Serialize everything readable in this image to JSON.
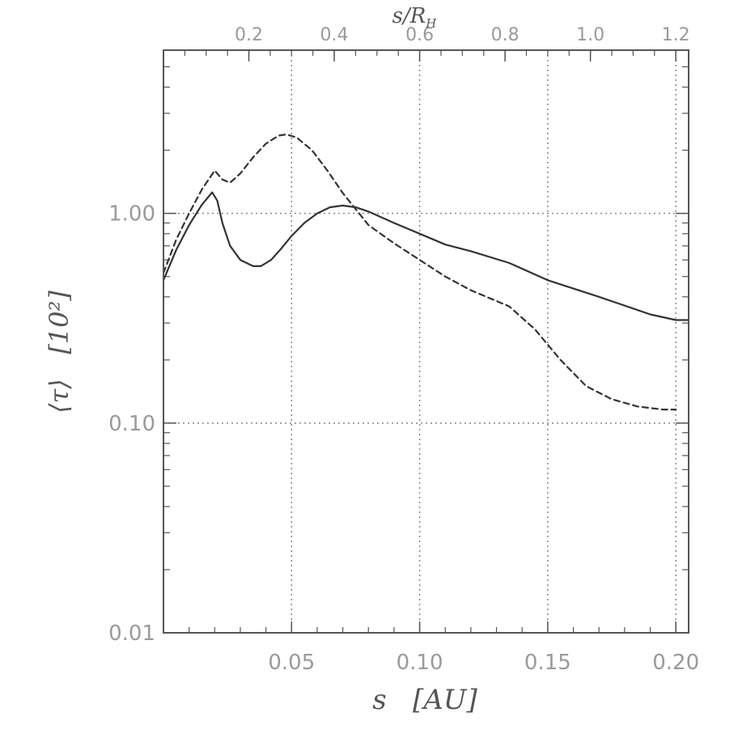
{
  "chart_data": {
    "type": "line",
    "xlabel": "s   [AU]",
    "ylabel": "⟨τ⟩   [10²]",
    "top_xlabel": "s/R",
    "top_xlabel_sub": "H",
    "xlim": [
      0.0,
      0.205
    ],
    "ylim": [
      0.01,
      6.0
    ],
    "y_scale": "log",
    "x_ticks": [
      {
        "value": 0.05,
        "label": "0.05"
      },
      {
        "value": 0.1,
        "label": "0.10"
      },
      {
        "value": 0.15,
        "label": "0.15"
      },
      {
        "value": 0.2,
        "label": "0.20"
      }
    ],
    "y_ticks": [
      {
        "value": 0.01,
        "label": "0.01"
      },
      {
        "value": 0.1,
        "label": "0.10"
      },
      {
        "value": 1.0,
        "label": "1.00"
      }
    ],
    "top_ticks": [
      {
        "value": 0.2,
        "label": "0.2"
      },
      {
        "value": 0.4,
        "label": "0.4"
      },
      {
        "value": 0.6,
        "label": "0.6"
      },
      {
        "value": 0.8,
        "label": "0.8"
      },
      {
        "value": 1.0,
        "label": "1.0"
      },
      {
        "value": 1.2,
        "label": "1.2"
      }
    ],
    "top_axis_per_x": 6.0,
    "grid": true,
    "series": [
      {
        "style": "solid",
        "color": "#333333",
        "x": [
          0.0,
          0.005,
          0.01,
          0.015,
          0.019,
          0.021,
          0.023,
          0.026,
          0.03,
          0.035,
          0.038,
          0.042,
          0.046,
          0.05,
          0.055,
          0.06,
          0.065,
          0.07,
          0.075,
          0.08,
          0.09,
          0.1,
          0.11,
          0.12,
          0.135,
          0.15,
          0.17,
          0.19,
          0.2,
          0.205
        ],
        "y": [
          0.48,
          0.67,
          0.88,
          1.1,
          1.26,
          1.15,
          0.9,
          0.7,
          0.6,
          0.56,
          0.56,
          0.6,
          0.68,
          0.78,
          0.9,
          1.0,
          1.07,
          1.09,
          1.07,
          1.02,
          0.9,
          0.8,
          0.71,
          0.66,
          0.58,
          0.48,
          0.4,
          0.33,
          0.31,
          0.31
        ]
      },
      {
        "style": "dashed",
        "color": "#333333",
        "x": [
          0.0,
          0.005,
          0.01,
          0.015,
          0.02,
          0.023,
          0.026,
          0.03,
          0.035,
          0.04,
          0.045,
          0.048,
          0.052,
          0.058,
          0.064,
          0.07,
          0.075,
          0.08,
          0.09,
          0.1,
          0.11,
          0.12,
          0.135,
          0.145,
          0.155,
          0.165,
          0.175,
          0.185,
          0.195,
          0.2
        ],
        "y": [
          0.52,
          0.75,
          1.0,
          1.3,
          1.6,
          1.45,
          1.4,
          1.55,
          1.85,
          2.15,
          2.35,
          2.38,
          2.3,
          2.0,
          1.6,
          1.25,
          1.05,
          0.88,
          0.72,
          0.6,
          0.5,
          0.43,
          0.36,
          0.28,
          0.2,
          0.15,
          0.13,
          0.12,
          0.116,
          0.116
        ]
      }
    ]
  }
}
